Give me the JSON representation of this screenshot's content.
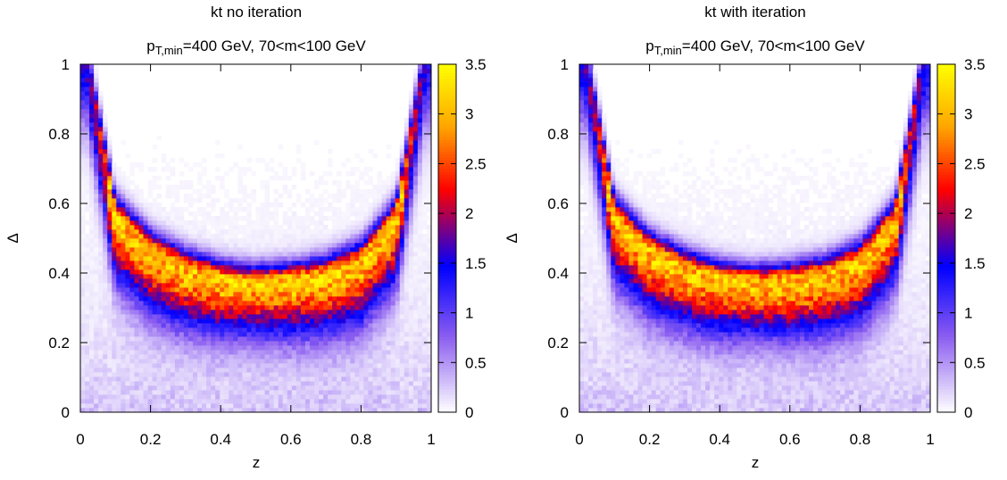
{
  "chart_data": [
    {
      "type": "heatmap",
      "title": "kt no iteration",
      "subtitle_main": "p",
      "subtitle_sub": "T,min",
      "subtitle_rest": "=400 GeV, 70<m<100 GeV",
      "xlabel": "z",
      "ylabel": "Δ",
      "xlim": [
        0,
        1
      ],
      "ylim": [
        0,
        1
      ],
      "xticks": [
        "0",
        "0.2",
        "0.4",
        "0.6",
        "0.8",
        "1"
      ],
      "yticks": [
        "0",
        "0.2",
        "0.4",
        "0.6",
        "0.8",
        "1"
      ],
      "colorbar": {
        "range": [
          0,
          3.5
        ],
        "ticks": [
          "0",
          "0.5",
          "1",
          "1.5",
          "2",
          "2.5",
          "3",
          "3.5"
        ],
        "palette": [
          "#ffffff",
          "#8a5cf0",
          "#0000ff",
          "#ff0000",
          "#ffa500",
          "#ffff00"
        ]
      },
      "ridge": {
        "description_points_z": [
          0.02,
          0.1,
          0.2,
          0.3,
          0.4,
          0.5,
          0.6,
          0.7,
          0.8,
          0.9,
          0.98
        ],
        "description_points_delta": [
          1.0,
          0.56,
          0.46,
          0.41,
          0.38,
          0.37,
          0.375,
          0.39,
          0.43,
          0.55,
          1.0
        ],
        "peak_value": 3.0
      }
    },
    {
      "type": "heatmap",
      "title": "kt with iteration",
      "subtitle_main": "p",
      "subtitle_sub": "T,min",
      "subtitle_rest": "=400 GeV, 70<m<100 GeV",
      "xlabel": "z",
      "ylabel": "Δ",
      "xlim": [
        0,
        1
      ],
      "ylim": [
        0,
        1
      ],
      "xticks": [
        "0",
        "0.2",
        "0.4",
        "0.6",
        "0.8",
        "1"
      ],
      "yticks": [
        "0",
        "0.2",
        "0.4",
        "0.6",
        "0.8",
        "1"
      ],
      "colorbar": {
        "range": [
          0,
          3.5
        ],
        "ticks": [
          "0",
          "0.5",
          "1",
          "1.5",
          "2",
          "2.5",
          "3",
          "3.5"
        ],
        "palette": [
          "#ffffff",
          "#8a5cf0",
          "#0000ff",
          "#ff0000",
          "#ffa500",
          "#ffff00"
        ]
      },
      "ridge": {
        "description_points_z": [
          0.02,
          0.1,
          0.2,
          0.3,
          0.4,
          0.5,
          0.6,
          0.7,
          0.8,
          0.9,
          0.98
        ],
        "description_points_delta": [
          1.0,
          0.56,
          0.46,
          0.41,
          0.38,
          0.37,
          0.375,
          0.39,
          0.43,
          0.55,
          1.0
        ],
        "peak_value": 3.0
      }
    }
  ]
}
